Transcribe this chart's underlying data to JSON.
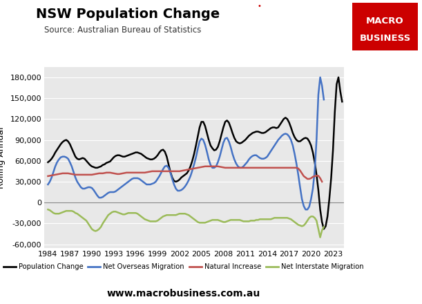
{
  "title": "NSW Population Change",
  "subtitle": "Source: Australian Bureau of Statistics",
  "ylabel": "Rolling Annual",
  "website": "www.macrobusiness.com.au",
  "background_color": "#e8e8e8",
  "fig_background": "#ffffff",
  "xlim": [
    1983.5,
    2024.5
  ],
  "ylim": [
    -65000,
    195000
  ],
  "yticks": [
    -60000,
    -30000,
    0,
    30000,
    60000,
    90000,
    120000,
    150000,
    180000
  ],
  "xticks": [
    1984,
    1987,
    1990,
    1993,
    1996,
    1999,
    2002,
    2005,
    2008,
    2011,
    2014,
    2017,
    2020,
    2023
  ],
  "population_change": [
    58000,
    60000,
    63000,
    67000,
    72000,
    76000,
    80000,
    84000,
    87000,
    89000,
    90000,
    88000,
    84000,
    78000,
    72000,
    66000,
    63000,
    62000,
    63000,
    64000,
    63000,
    60000,
    57000,
    54000,
    52000,
    51000,
    50000,
    50000,
    51000,
    52000,
    54000,
    55000,
    57000,
    58000,
    59000,
    62000,
    65000,
    67000,
    68000,
    68000,
    67000,
    66000,
    66000,
    67000,
    68000,
    69000,
    70000,
    71000,
    72000,
    72000,
    71000,
    70000,
    68000,
    66000,
    64000,
    63000,
    62000,
    62000,
    63000,
    65000,
    68000,
    72000,
    75000,
    76000,
    73000,
    66000,
    55000,
    44000,
    36000,
    31000,
    30000,
    31000,
    33000,
    36000,
    38000,
    40000,
    42000,
    46000,
    52000,
    60000,
    70000,
    82000,
    95000,
    108000,
    116000,
    116000,
    110000,
    100000,
    90000,
    82000,
    78000,
    75000,
    76000,
    80000,
    88000,
    98000,
    108000,
    116000,
    118000,
    115000,
    108000,
    100000,
    93000,
    88000,
    86000,
    85000,
    86000,
    88000,
    90000,
    93000,
    96000,
    98000,
    100000,
    101000,
    102000,
    102000,
    101000,
    100000,
    100000,
    101000,
    103000,
    105000,
    107000,
    108000,
    108000,
    107000,
    108000,
    112000,
    116000,
    120000,
    122000,
    120000,
    115000,
    108000,
    100000,
    94000,
    90000,
    88000,
    88000,
    90000,
    92000,
    93000,
    92000,
    88000,
    82000,
    72000,
    58000,
    40000,
    18000,
    -10000,
    -28000,
    -38000,
    -34000,
    -20000,
    5000,
    35000,
    75000,
    130000,
    170000,
    180000,
    160000,
    145000
  ],
  "net_overseas_migration": [
    26000,
    30000,
    36000,
    44000,
    52000,
    58000,
    62000,
    65000,
    66000,
    66000,
    65000,
    63000,
    58000,
    52000,
    44000,
    36000,
    30000,
    26000,
    22000,
    20000,
    20000,
    21000,
    22000,
    22000,
    21000,
    18000,
    14000,
    10000,
    7000,
    7000,
    8000,
    10000,
    12000,
    14000,
    15000,
    15000,
    15000,
    16000,
    18000,
    20000,
    22000,
    24000,
    26000,
    28000,
    30000,
    32000,
    34000,
    35000,
    35000,
    35000,
    34000,
    32000,
    30000,
    28000,
    26000,
    26000,
    26000,
    27000,
    28000,
    30000,
    34000,
    38000,
    43000,
    48000,
    52000,
    53000,
    50000,
    43000,
    34000,
    26000,
    20000,
    17000,
    17000,
    18000,
    20000,
    23000,
    27000,
    32000,
    38000,
    46000,
    55000,
    65000,
    77000,
    88000,
    92000,
    90000,
    83000,
    73000,
    62000,
    54000,
    50000,
    50000,
    52000,
    58000,
    66000,
    76000,
    86000,
    92000,
    93000,
    88000,
    80000,
    70000,
    62000,
    56000,
    52000,
    50000,
    50000,
    52000,
    55000,
    58000,
    62000,
    65000,
    67000,
    68000,
    68000,
    66000,
    64000,
    63000,
    63000,
    64000,
    66000,
    70000,
    74000,
    78000,
    82000,
    86000,
    90000,
    93000,
    96000,
    98000,
    99000,
    98000,
    95000,
    90000,
    82000,
    70000,
    56000,
    40000,
    22000,
    5000,
    -5000,
    -10000,
    -10000,
    -6000,
    5000,
    20000,
    45000,
    90000,
    155000,
    180000,
    168000,
    148000
  ],
  "natural_increase": [
    38000,
    38500,
    39000,
    39500,
    40000,
    40500,
    41000,
    41500,
    42000,
    42000,
    42000,
    42000,
    41500,
    41000,
    40500,
    40000,
    40000,
    40000,
    40000,
    40000,
    40000,
    40000,
    40000,
    40000,
    40000,
    40500,
    41000,
    41500,
    42000,
    42000,
    42000,
    42500,
    43000,
    43000,
    43000,
    42500,
    42000,
    41500,
    41000,
    41000,
    41500,
    42000,
    42500,
    43000,
    43000,
    43000,
    43000,
    43000,
    43000,
    43000,
    43000,
    43000,
    43000,
    43000,
    43500,
    44000,
    44500,
    45000,
    45000,
    45000,
    45000,
    45000,
    45000,
    45000,
    45000,
    45000,
    45000,
    45000,
    45000,
    45000,
    45000,
    45000,
    45000,
    45500,
    46000,
    46500,
    47000,
    47500,
    48000,
    48500,
    49000,
    49500,
    50000,
    50500,
    51000,
    51500,
    52000,
    52000,
    52000,
    52000,
    52000,
    52000,
    52000,
    52000,
    51500,
    51000,
    50500,
    50000,
    50000,
    50000,
    50000,
    50000,
    50000,
    50000,
    50000,
    50000,
    50000,
    50000,
    50000,
    50000,
    50000,
    50000,
    50000,
    50000,
    50000,
    50000,
    50000,
    50000,
    50000,
    50000,
    50000,
    50000,
    50000,
    50000,
    50000,
    50000,
    50000,
    50000,
    50000,
    50000,
    50000,
    50000,
    50000,
    50000,
    50000,
    50000,
    50000,
    49000,
    46000,
    42000,
    38000,
    36000,
    34000,
    34000,
    35000,
    37000,
    38000,
    38500,
    38500,
    35000,
    30000
  ],
  "net_interstate_migration": [
    -10000,
    -11000,
    -13000,
    -15000,
    -16000,
    -16000,
    -16000,
    -15000,
    -14000,
    -13000,
    -12000,
    -12000,
    -12000,
    -12000,
    -13000,
    -15000,
    -16000,
    -18000,
    -20000,
    -22000,
    -24000,
    -26000,
    -30000,
    -34000,
    -38000,
    -40000,
    -41000,
    -40000,
    -38000,
    -35000,
    -30000,
    -26000,
    -22000,
    -18000,
    -16000,
    -14000,
    -13000,
    -13000,
    -14000,
    -15000,
    -16000,
    -17000,
    -17000,
    -16000,
    -15000,
    -15000,
    -15000,
    -15000,
    -15000,
    -16000,
    -18000,
    -20000,
    -22000,
    -24000,
    -25000,
    -26000,
    -27000,
    -27000,
    -27000,
    -27000,
    -26000,
    -24000,
    -22000,
    -20000,
    -19000,
    -18000,
    -18000,
    -18000,
    -18000,
    -18000,
    -18000,
    -17000,
    -16000,
    -16000,
    -16000,
    -16000,
    -17000,
    -18000,
    -20000,
    -22000,
    -24000,
    -26000,
    -28000,
    -29000,
    -29000,
    -29000,
    -29000,
    -28000,
    -27000,
    -26000,
    -25000,
    -25000,
    -25000,
    -25000,
    -26000,
    -27000,
    -28000,
    -28000,
    -27000,
    -26000,
    -25000,
    -25000,
    -25000,
    -25000,
    -25000,
    -25000,
    -26000,
    -27000,
    -27000,
    -27000,
    -27000,
    -26000,
    -26000,
    -26000,
    -25000,
    -25000,
    -24000,
    -24000,
    -24000,
    -24000,
    -24000,
    -24000,
    -24000,
    -23000,
    -22000,
    -22000,
    -22000,
    -22000,
    -22000,
    -22000,
    -22000,
    -22000,
    -23000,
    -24000,
    -26000,
    -28000,
    -30000,
    -32000,
    -33000,
    -34000,
    -33000,
    -30000,
    -26000,
    -22000,
    -20000,
    -20000,
    -22000,
    -26000,
    -38000,
    -50000,
    -40000,
    -35000
  ],
  "series_colors": {
    "population_change": "#000000",
    "net_overseas_migration": "#4472c4",
    "natural_increase": "#c0504d",
    "net_interstate_migration": "#9bbb59"
  },
  "series_labels": {
    "population_change": "Population Change",
    "net_overseas_migration": "Net Overseas Migration",
    "natural_increase": "Natural Increase",
    "net_interstate_migration": "Net Interstate Migration"
  }
}
